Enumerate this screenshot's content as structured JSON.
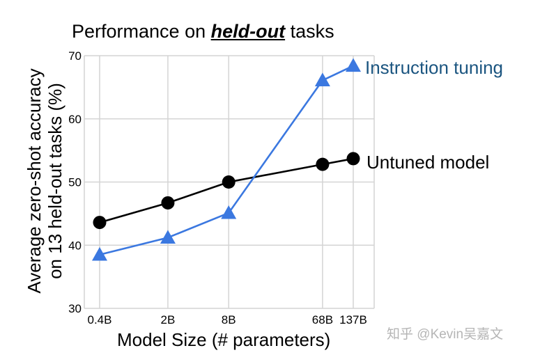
{
  "chart_data": {
    "type": "line",
    "title_prefix": "Performance on ",
    "title_emphasis": "held-out",
    "title_suffix": " tasks",
    "xlabel": "Model Size (# parameters)",
    "ylabel_line1": "Average zero-shot accuracy",
    "ylabel_line2": "on 13 held-out tasks (%)",
    "scale": "log",
    "x_params_billions": [
      0.422,
      2,
      8,
      68,
      137
    ],
    "x_tick_labels": [
      "0.4B",
      "2B",
      "8B",
      "68B",
      "137B"
    ],
    "y_ticks": [
      30,
      40,
      50,
      60,
      70
    ],
    "ylim": [
      30,
      70
    ],
    "grid": true,
    "series": [
      {
        "name": "Instruction tuning",
        "marker": "triangle",
        "color": "#3b78e0",
        "label_color": "#1b5580",
        "values": [
          38.5,
          41.2,
          45.1,
          66.1,
          68.4
        ]
      },
      {
        "name": "Untuned model",
        "marker": "circle",
        "color": "#000000",
        "label_color": "#000000",
        "values": [
          43.6,
          46.7,
          50.0,
          52.8,
          53.7
        ]
      }
    ]
  },
  "watermark": "知乎 @Kevin吴嘉文"
}
